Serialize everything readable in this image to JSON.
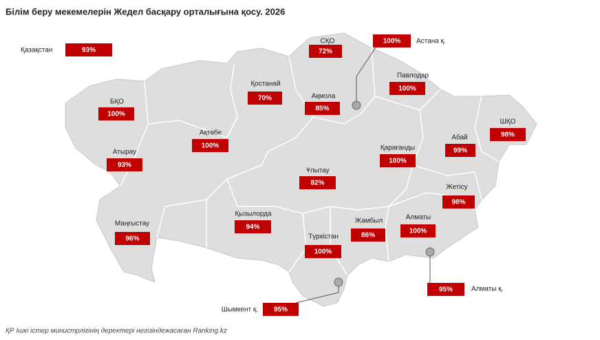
{
  "title": "Білім беру мекемелерін Жедел басқару орталығына қосу. 2026",
  "country": {
    "name": "Қазақстан",
    "label": "93%"
  },
  "regions": [
    {
      "name": "СҚО",
      "label": "72%"
    },
    {
      "name": "Астана қ.",
      "label": "100%"
    },
    {
      "name": "Павлодар",
      "label": "100%"
    },
    {
      "name": "Қостанай",
      "label": "70%"
    },
    {
      "name": "Ақмола",
      "label": "85%"
    },
    {
      "name": "БҚО",
      "label": "100%"
    },
    {
      "name": "Ақтөбе",
      "label": "100%"
    },
    {
      "name": "Абай",
      "label": "99%"
    },
    {
      "name": "ШҚО",
      "label": "98%"
    },
    {
      "name": "Қарағанды",
      "label": "100%"
    },
    {
      "name": "Атырау",
      "label": "93%"
    },
    {
      "name": "Ұлытау",
      "label": "82%"
    },
    {
      "name": "Жетісу",
      "label": "98%"
    },
    {
      "name": "Қызылорда",
      "label": "94%"
    },
    {
      "name": "Маңғыстау",
      "label": "96%"
    },
    {
      "name": "Жамбыл",
      "label": "86%"
    },
    {
      "name": "Алматы",
      "label": "100%"
    },
    {
      "name": "Түркістан",
      "label": "100%"
    },
    {
      "name": "Алматы қ.",
      "label": "95%"
    },
    {
      "name": "Шымкент қ.",
      "label": "95%"
    }
  ],
  "footer": "ҚР Ішкі істер министрлігінің деректері негізіндежасаған Ranking.kz"
}
